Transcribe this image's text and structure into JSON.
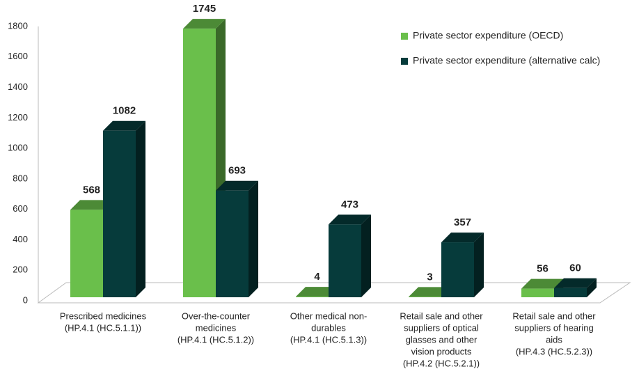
{
  "chart_data": {
    "type": "bar3d",
    "categories": [
      [
        "Prescribed medicines",
        "(HP.4.1  (HC.5.1.1))"
      ],
      [
        "Over-the-counter",
        "medicines",
        "(HP.4.1  (HC.5.1.2))"
      ],
      [
        "Other medical non-",
        "durables",
        "(HP.4.1  (HC.5.1.3))"
      ],
      [
        "Retail sale and other",
        "suppliers of optical",
        "glasses and other",
        "vision products",
        "(HP.4.2 (HC.5.2.1))"
      ],
      [
        "Retail sale and other",
        "suppliers of hearing",
        "aids",
        "(HP.4.3 (HC.5.2.3))"
      ]
    ],
    "series": [
      {
        "name": "Private sector expenditure (OECD)",
        "color": "#6abf4b",
        "values": [
          568,
          1745,
          4,
          3,
          56
        ]
      },
      {
        "name": "Private sector expenditure (alternative calc)",
        "color": "#063b3b",
        "values": [
          1082,
          693,
          473,
          357,
          60
        ]
      }
    ],
    "ylim": [
      0,
      1800
    ],
    "yticks": [
      0,
      200,
      400,
      600,
      800,
      1000,
      1200,
      1400,
      1600,
      1800
    ],
    "legend": "top-right"
  }
}
